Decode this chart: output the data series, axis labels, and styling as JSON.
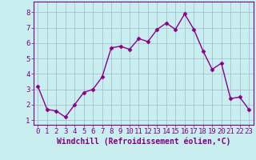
{
  "x": [
    0,
    1,
    2,
    3,
    4,
    5,
    6,
    7,
    8,
    9,
    10,
    11,
    12,
    13,
    14,
    15,
    16,
    17,
    18,
    19,
    20,
    21,
    22,
    23
  ],
  "y": [
    3.2,
    1.7,
    1.6,
    1.2,
    2.0,
    2.8,
    3.0,
    3.8,
    5.7,
    5.8,
    5.6,
    6.3,
    6.1,
    6.9,
    7.3,
    6.9,
    7.9,
    6.9,
    5.5,
    4.3,
    4.7,
    2.4,
    2.5,
    1.7
  ],
  "line_color": "#8B008B",
  "marker": "D",
  "markersize": 2.5,
  "linewidth": 1.0,
  "xlabel": "Windchill (Refroidissement éolien,°C)",
  "xlim": [
    -0.5,
    23.5
  ],
  "ylim": [
    0.7,
    8.7
  ],
  "xticks": [
    0,
    1,
    2,
    3,
    4,
    5,
    6,
    7,
    8,
    9,
    10,
    11,
    12,
    13,
    14,
    15,
    16,
    17,
    18,
    19,
    20,
    21,
    22,
    23
  ],
  "yticks": [
    1,
    2,
    3,
    4,
    5,
    6,
    7,
    8
  ],
  "bg_color": "#c8eef0",
  "grid_color": "#a0b8c8",
  "font_color": "#800080",
  "xlabel_fontsize": 7,
  "tick_fontsize": 6.5
}
